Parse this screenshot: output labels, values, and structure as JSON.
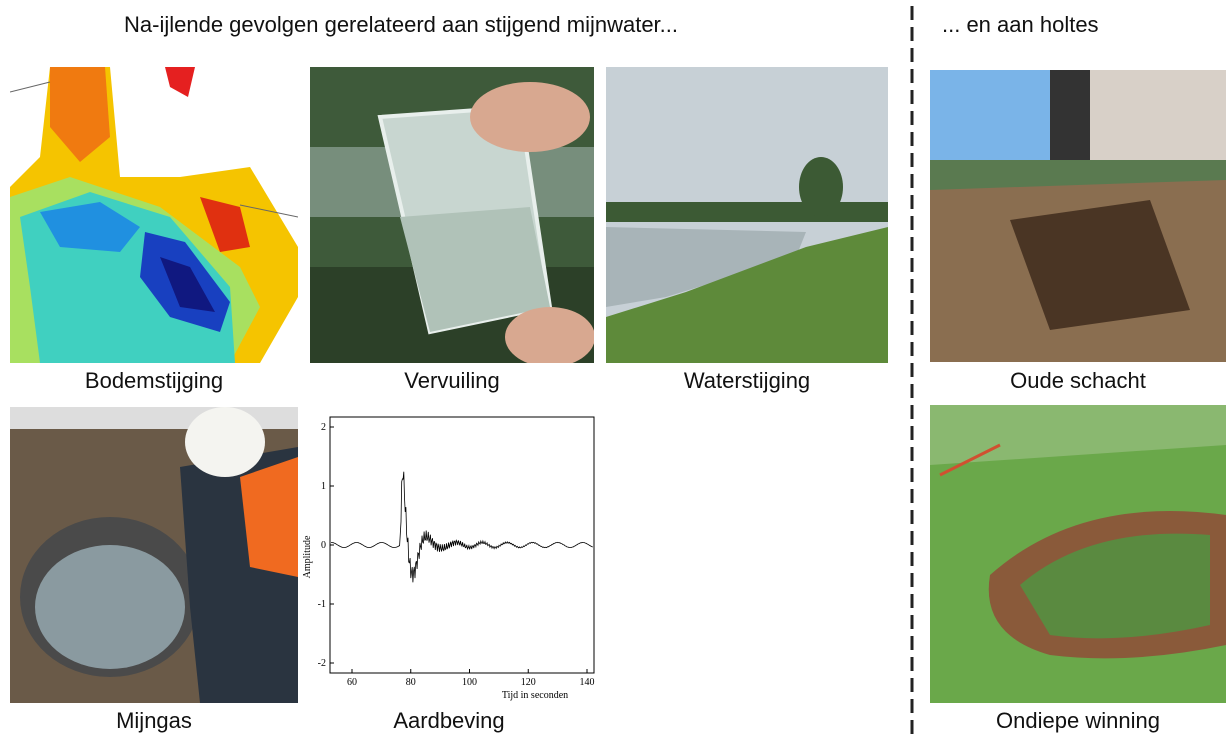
{
  "left_heading": "Na-ijlende gevolgen gerelateerd aan stijgend mijnwater...",
  "right_heading": "... en aan holtes",
  "captions": [
    "Bodemstijging",
    "Vervuiling",
    "Waterstijging",
    "Mijngas",
    "Aardbeving",
    "Oude schacht",
    "Ondiepe winning"
  ],
  "seismogram": {
    "xlabel": "Tijd in seconden",
    "ylabel": "Amplitude",
    "xticks": [
      60,
      80,
      100,
      120,
      140
    ],
    "yticks": [
      2,
      1,
      0,
      -1,
      -2
    ]
  }
}
